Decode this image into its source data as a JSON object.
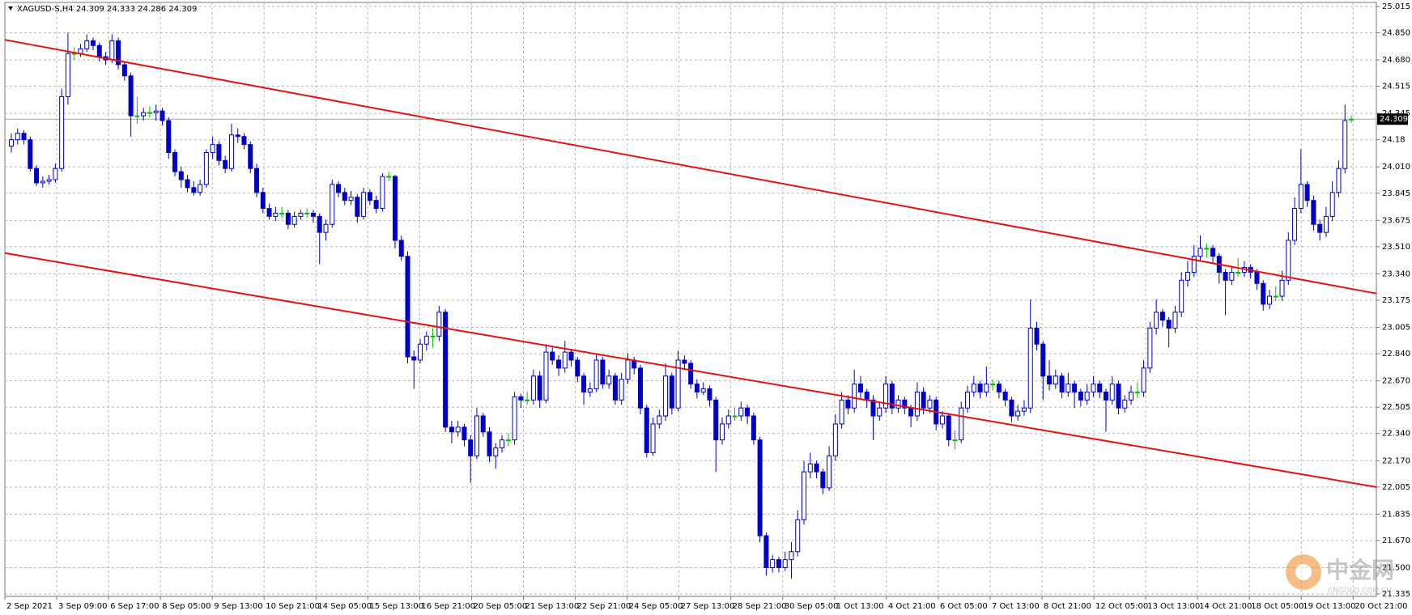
{
  "chart_data": {
    "type": "candlestick",
    "title": "XAGUSD-S,H4  24.309 24.333 24.286 24.309",
    "ylim": [
      21.32,
      25.04
    ],
    "yticks": [
      25.015,
      {
        "value": 24.85,
        "label": "24.850"
      },
      {
        "value": 24.68,
        "label": "24.680"
      },
      24.515,
      24.345,
      24.18,
      {
        "value": 24.01,
        "label": "24.010"
      },
      23.845,
      23.675,
      {
        "value": 23.51,
        "label": "23.510"
      },
      {
        "value": 23.34,
        "label": "23.340"
      },
      23.175,
      23.005,
      {
        "value": 22.84,
        "label": "22.840"
      },
      {
        "value": 22.67,
        "label": "22.670"
      },
      22.505,
      {
        "value": 22.34,
        "label": "22.340"
      },
      {
        "value": 22.17,
        "label": "22.170"
      },
      22.005,
      21.835,
      {
        "value": 21.67,
        "label": "21.670"
      },
      {
        "value": 21.5,
        "label": "21.500"
      },
      21.335
    ],
    "grid": true,
    "x_labels": [
      "2 Sep 2021",
      "3 Sep 09:00",
      "6 Sep 17:00",
      "8 Sep 05:00",
      "9 Sep 13:00",
      "10 Sep 21:00",
      "14 Sep 05:00",
      "15 Sep 13:00",
      "16 Sep 21:00",
      "20 Sep 05:00",
      "21 Sep 13:00",
      "22 Sep 21:00",
      "24 Sep 05:00",
      "27 Sep 13:00",
      "28 Sep 21:00",
      "30 Sep 05:00",
      "1 Oct 13:00",
      "4 Oct 21:00",
      "6 Oct 05:00",
      "7 Oct 13:00",
      "8 Oct 21:00",
      "12 Oct 05:00",
      "13 Oct 13:00",
      "14 Oct 21:00",
      "18 Oct 05:00",
      "19 Oct 13:00",
      "20 Oct 21:00"
    ],
    "colors": {
      "bull": "#ffffff",
      "bear": "#0000c8",
      "outline": "#0000c8",
      "doji": "#00c000",
      "trendline": "#e8120c",
      "price_line": "#a0a0a0"
    },
    "current_price": 24.309,
    "trendlines": [
      {
        "from": 24.806,
        "to": 23.217
      },
      {
        "from": 23.47,
        "to": 22.005
      }
    ],
    "watermark": {
      "text": "中金网",
      "sub": "CNGOLD.COM.CN"
    },
    "candles": [
      [
        24.14,
        24.22,
        24.1,
        24.18
      ],
      [
        24.18,
        24.25,
        24.15,
        24.22
      ],
      [
        24.22,
        24.24,
        24.15,
        24.18
      ],
      [
        24.18,
        24.2,
        23.98,
        24.0
      ],
      [
        24.0,
        24.02,
        23.89,
        23.91
      ],
      [
        23.91,
        23.95,
        23.88,
        23.92
      ],
      [
        23.92,
        23.96,
        23.9,
        23.93
      ],
      [
        23.93,
        24.03,
        23.91,
        24.0
      ],
      [
        24.0,
        24.5,
        23.98,
        24.45
      ],
      [
        24.45,
        24.85,
        24.4,
        24.72
      ],
      [
        24.72,
        24.76,
        24.68,
        24.72
      ],
      [
        24.72,
        24.78,
        24.7,
        24.75
      ],
      [
        24.75,
        24.84,
        24.73,
        24.8
      ],
      [
        24.8,
        24.82,
        24.74,
        24.77
      ],
      [
        24.77,
        24.79,
        24.67,
        24.7
      ],
      [
        24.7,
        24.73,
        24.65,
        24.68
      ],
      [
        24.68,
        24.84,
        24.66,
        24.8
      ],
      [
        24.8,
        24.82,
        24.62,
        24.65
      ],
      [
        24.65,
        24.67,
        24.55,
        24.58
      ],
      [
        24.58,
        24.6,
        24.2,
        24.33
      ],
      [
        24.33,
        24.45,
        24.28,
        24.33
      ],
      [
        24.33,
        24.38,
        24.3,
        24.35
      ],
      [
        24.35,
        24.39,
        24.32,
        24.35
      ],
      [
        24.35,
        24.4,
        24.3,
        24.36
      ],
      [
        24.36,
        24.38,
        24.27,
        24.3
      ],
      [
        24.3,
        24.32,
        24.06,
        24.1
      ],
      [
        24.1,
        24.12,
        23.95,
        23.98
      ],
      [
        23.98,
        24.01,
        23.88,
        23.93
      ],
      [
        23.93,
        23.96,
        23.85,
        23.88
      ],
      [
        23.88,
        23.92,
        23.83,
        23.85
      ],
      [
        23.85,
        23.93,
        23.83,
        23.9
      ],
      [
        23.9,
        24.12,
        23.88,
        24.1
      ],
      [
        24.1,
        24.2,
        24.06,
        24.15
      ],
      [
        24.15,
        24.17,
        24.02,
        24.05
      ],
      [
        24.05,
        24.08,
        23.97,
        24.0
      ],
      [
        24.0,
        24.28,
        23.98,
        24.21
      ],
      [
        24.21,
        24.25,
        24.16,
        24.2
      ],
      [
        24.2,
        24.22,
        24.12,
        24.15
      ],
      [
        24.15,
        24.17,
        23.97,
        24.0
      ],
      [
        24.0,
        24.03,
        23.82,
        23.85
      ],
      [
        23.85,
        23.88,
        23.72,
        23.75
      ],
      [
        23.75,
        23.78,
        23.68,
        23.7
      ],
      [
        23.7,
        23.76,
        23.67,
        23.72
      ],
      [
        23.72,
        23.76,
        23.69,
        23.72
      ],
      [
        23.72,
        23.74,
        23.62,
        23.65
      ],
      [
        23.65,
        23.73,
        23.63,
        23.7
      ],
      [
        23.7,
        23.74,
        23.68,
        23.72
      ],
      [
        23.72,
        23.75,
        23.69,
        23.72
      ],
      [
        23.72,
        23.74,
        23.66,
        23.7
      ],
      [
        23.7,
        23.72,
        23.4,
        23.6
      ],
      [
        23.6,
        23.68,
        23.55,
        23.65
      ],
      [
        23.65,
        23.93,
        23.63,
        23.9
      ],
      [
        23.9,
        23.92,
        23.82,
        23.85
      ],
      [
        23.85,
        23.88,
        23.77,
        23.8
      ],
      [
        23.8,
        23.86,
        23.77,
        23.82
      ],
      [
        23.82,
        23.84,
        23.66,
        23.7
      ],
      [
        23.7,
        23.88,
        23.68,
        23.85
      ],
      [
        23.85,
        23.87,
        23.77,
        23.8
      ],
      [
        23.8,
        23.83,
        23.72,
        23.75
      ],
      [
        23.75,
        23.97,
        23.73,
        23.95
      ],
      [
        23.95,
        23.98,
        23.92,
        23.95
      ],
      [
        23.95,
        23.96,
        23.5,
        23.55
      ],
      [
        23.55,
        23.58,
        23.42,
        23.45
      ],
      [
        23.45,
        23.48,
        22.78,
        22.82
      ],
      [
        22.82,
        22.86,
        22.62,
        22.8
      ],
      [
        22.8,
        22.93,
        22.78,
        22.9
      ],
      [
        22.9,
        22.98,
        22.86,
        22.95
      ],
      [
        22.95,
        23.0,
        22.88,
        22.95
      ],
      [
        22.95,
        23.14,
        22.92,
        23.1
      ],
      [
        23.1,
        23.12,
        22.35,
        22.38
      ],
      [
        22.38,
        22.42,
        22.28,
        22.35
      ],
      [
        22.35,
        22.42,
        22.32,
        22.38
      ],
      [
        22.38,
        22.4,
        22.26,
        22.3
      ],
      [
        22.3,
        22.33,
        22.03,
        22.2
      ],
      [
        22.2,
        22.5,
        22.18,
        22.45
      ],
      [
        22.45,
        22.47,
        22.32,
        22.35
      ],
      [
        22.35,
        22.38,
        22.16,
        22.2
      ],
      [
        22.2,
        22.28,
        22.12,
        22.25
      ],
      [
        22.25,
        22.33,
        22.22,
        22.3
      ],
      [
        22.3,
        22.34,
        22.26,
        22.3
      ],
      [
        22.3,
        22.6,
        22.27,
        22.57
      ],
      [
        22.57,
        22.59,
        22.5,
        22.55
      ],
      [
        22.55,
        22.6,
        22.52,
        22.55
      ],
      [
        22.55,
        22.74,
        22.52,
        22.7
      ],
      [
        22.7,
        22.73,
        22.5,
        22.55
      ],
      [
        22.55,
        22.9,
        22.53,
        22.85
      ],
      [
        22.85,
        22.88,
        22.77,
        22.8
      ],
      [
        22.8,
        22.83,
        22.7,
        22.75
      ],
      [
        22.75,
        22.92,
        22.72,
        22.85
      ],
      [
        22.85,
        22.87,
        22.76,
        22.8
      ],
      [
        22.8,
        22.82,
        22.66,
        22.7
      ],
      [
        22.7,
        22.72,
        22.52,
        22.6
      ],
      [
        22.6,
        22.66,
        22.57,
        22.62
      ],
      [
        22.62,
        22.84,
        22.6,
        22.8
      ],
      [
        22.8,
        22.82,
        22.62,
        22.65
      ],
      [
        22.65,
        22.74,
        22.62,
        22.7
      ],
      [
        22.7,
        22.72,
        22.52,
        22.55
      ],
      [
        22.55,
        22.72,
        22.52,
        22.68
      ],
      [
        22.68,
        22.84,
        22.65,
        22.8
      ],
      [
        22.8,
        22.82,
        22.71,
        22.75
      ],
      [
        22.75,
        22.77,
        22.46,
        22.5
      ],
      [
        22.5,
        22.52,
        22.19,
        22.22
      ],
      [
        22.22,
        22.44,
        22.2,
        22.4
      ],
      [
        22.4,
        22.49,
        22.37,
        22.45
      ],
      [
        22.45,
        22.78,
        22.42,
        22.7
      ],
      [
        22.7,
        22.72,
        22.46,
        22.5
      ],
      [
        22.5,
        22.86,
        22.48,
        22.8
      ],
      [
        22.8,
        22.83,
        22.74,
        22.78
      ],
      [
        22.78,
        22.8,
        22.62,
        22.65
      ],
      [
        22.65,
        22.68,
        22.56,
        22.6
      ],
      [
        22.6,
        22.66,
        22.58,
        22.62
      ],
      [
        22.62,
        22.64,
        22.51,
        22.55
      ],
      [
        22.55,
        22.57,
        22.1,
        22.3
      ],
      [
        22.3,
        22.44,
        22.27,
        22.4
      ],
      [
        22.4,
        22.49,
        22.37,
        22.45
      ],
      [
        22.45,
        22.5,
        22.42,
        22.45
      ],
      [
        22.45,
        22.54,
        22.42,
        22.5
      ],
      [
        22.5,
        22.52,
        22.4,
        22.45
      ],
      [
        22.45,
        22.47,
        22.27,
        22.3
      ],
      [
        22.3,
        22.32,
        21.66,
        21.7
      ],
      [
        21.7,
        21.72,
        21.45,
        21.5
      ],
      [
        21.5,
        21.58,
        21.47,
        21.55
      ],
      [
        21.55,
        21.57,
        21.47,
        21.5
      ],
      [
        21.5,
        21.6,
        21.48,
        21.55
      ],
      [
        21.55,
        21.66,
        21.43,
        21.6
      ],
      [
        21.6,
        21.86,
        21.57,
        21.8
      ],
      [
        21.8,
        22.17,
        21.77,
        22.1
      ],
      [
        22.1,
        22.22,
        22.06,
        22.15
      ],
      [
        22.15,
        22.17,
        22.06,
        22.1
      ],
      [
        22.1,
        22.12,
        21.96,
        22.0
      ],
      [
        22.0,
        22.26,
        21.98,
        22.2
      ],
      [
        22.2,
        22.46,
        22.17,
        22.4
      ],
      [
        22.4,
        22.6,
        22.37,
        22.55
      ],
      [
        22.55,
        22.58,
        22.46,
        22.5
      ],
      [
        22.5,
        22.74,
        22.47,
        22.65
      ],
      [
        22.65,
        22.7,
        22.56,
        22.6
      ],
      [
        22.6,
        22.62,
        22.5,
        22.55
      ],
      [
        22.55,
        22.58,
        22.3,
        22.45
      ],
      [
        22.45,
        22.54,
        22.42,
        22.5
      ],
      [
        22.5,
        22.7,
        22.47,
        22.65
      ],
      [
        22.65,
        22.67,
        22.46,
        22.5
      ],
      [
        22.5,
        22.58,
        22.47,
        22.55
      ],
      [
        22.55,
        22.57,
        22.46,
        22.5
      ],
      [
        22.5,
        22.52,
        22.38,
        22.45
      ],
      [
        22.45,
        22.66,
        22.42,
        22.6
      ],
      [
        22.6,
        22.63,
        22.46,
        22.5
      ],
      [
        22.5,
        22.58,
        22.47,
        22.55
      ],
      [
        22.55,
        22.57,
        22.36,
        22.4
      ],
      [
        22.4,
        22.48,
        22.37,
        22.45
      ],
      [
        22.45,
        22.47,
        22.26,
        22.3
      ],
      [
        22.3,
        22.36,
        22.24,
        22.3
      ],
      [
        22.3,
        22.54,
        22.28,
        22.5
      ],
      [
        22.5,
        22.64,
        22.47,
        22.6
      ],
      [
        22.6,
        22.7,
        22.57,
        22.65
      ],
      [
        22.65,
        22.67,
        22.56,
        22.6
      ],
      [
        22.6,
        22.76,
        22.57,
        22.65
      ],
      [
        22.65,
        22.68,
        22.61,
        22.65
      ],
      [
        22.65,
        22.67,
        22.56,
        22.6
      ],
      [
        22.6,
        22.62,
        22.51,
        22.55
      ],
      [
        22.55,
        22.57,
        22.41,
        22.45
      ],
      [
        22.45,
        22.52,
        22.42,
        22.48
      ],
      [
        22.48,
        22.55,
        22.45,
        22.5
      ],
      [
        22.5,
        23.18,
        22.47,
        23.0
      ],
      [
        23.0,
        23.04,
        22.86,
        22.9
      ],
      [
        22.9,
        22.92,
        22.55,
        22.7
      ],
      [
        22.7,
        22.8,
        22.61,
        22.65
      ],
      [
        22.65,
        22.74,
        22.62,
        22.7
      ],
      [
        22.7,
        22.72,
        22.56,
        22.6
      ],
      [
        22.6,
        22.72,
        22.57,
        22.65
      ],
      [
        22.65,
        22.67,
        22.5,
        22.6
      ],
      [
        22.6,
        22.62,
        22.51,
        22.55
      ],
      [
        22.55,
        22.65,
        22.52,
        22.6
      ],
      [
        22.6,
        22.7,
        22.57,
        22.65
      ],
      [
        22.65,
        22.67,
        22.56,
        22.6
      ],
      [
        22.6,
        22.62,
        22.35,
        22.55
      ],
      [
        22.55,
        22.7,
        22.52,
        22.65
      ],
      [
        22.65,
        22.67,
        22.46,
        22.5
      ],
      [
        22.5,
        22.58,
        22.47,
        22.55
      ],
      [
        22.55,
        22.64,
        22.52,
        22.6
      ],
      [
        22.6,
        22.66,
        22.56,
        22.6
      ],
      [
        22.6,
        22.8,
        22.57,
        22.75
      ],
      [
        22.75,
        23.04,
        22.72,
        23.0
      ],
      [
        23.0,
        23.18,
        22.96,
        23.1
      ],
      [
        23.1,
        23.12,
        23.01,
        23.05
      ],
      [
        23.05,
        23.07,
        22.88,
        23.0
      ],
      [
        23.0,
        23.14,
        22.97,
        23.1
      ],
      [
        23.1,
        23.35,
        23.07,
        23.3
      ],
      [
        23.3,
        23.42,
        23.26,
        23.35
      ],
      [
        23.35,
        23.52,
        23.32,
        23.45
      ],
      [
        23.45,
        23.58,
        23.42,
        23.5
      ],
      [
        23.5,
        23.53,
        23.44,
        23.5
      ],
      [
        23.5,
        23.52,
        23.41,
        23.45
      ],
      [
        23.45,
        23.47,
        23.28,
        23.35
      ],
      [
        23.35,
        23.37,
        23.08,
        23.3
      ],
      [
        23.3,
        23.39,
        23.27,
        23.35
      ],
      [
        23.35,
        23.44,
        23.32,
        23.35
      ],
      [
        23.35,
        23.42,
        23.32,
        23.38
      ],
      [
        23.38,
        23.4,
        23.31,
        23.35
      ],
      [
        23.35,
        23.37,
        23.24,
        23.28
      ],
      [
        23.28,
        23.3,
        23.11,
        23.15
      ],
      [
        23.15,
        23.24,
        23.12,
        23.2
      ],
      [
        23.2,
        23.26,
        23.17,
        23.2
      ],
      [
        23.2,
        23.36,
        23.17,
        23.3
      ],
      [
        23.3,
        23.6,
        23.27,
        23.55
      ],
      [
        23.55,
        23.82,
        23.52,
        23.75
      ],
      [
        23.75,
        24.12,
        23.72,
        23.9
      ],
      [
        23.9,
        23.92,
        23.76,
        23.8
      ],
      [
        23.8,
        23.83,
        23.61,
        23.65
      ],
      [
        23.65,
        23.68,
        23.55,
        23.6
      ],
      [
        23.6,
        23.76,
        23.57,
        23.7
      ],
      [
        23.7,
        23.92,
        23.67,
        23.85
      ],
      [
        23.85,
        24.05,
        23.82,
        24.0
      ],
      [
        24.0,
        24.4,
        23.97,
        24.3
      ],
      [
        24.309,
        24.333,
        24.286,
        24.309
      ]
    ]
  }
}
